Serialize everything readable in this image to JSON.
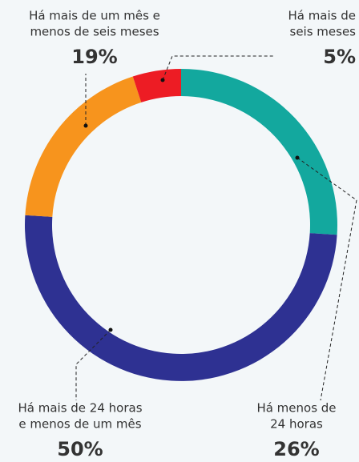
{
  "chart_data": {
    "type": "donut",
    "categories": [
      [
        "Há menos de",
        "24 horas"
      ],
      [
        "Há mais de 24 horas",
        "e menos de um mês"
      ],
      [
        "Há mais de um mês e",
        "menos de seis meses"
      ],
      [
        "Há mais de",
        "seis meses"
      ]
    ],
    "values": [
      26,
      50,
      19,
      5
    ],
    "value_labels": [
      "26%",
      "50%",
      "19%",
      "5%"
    ],
    "colors": [
      "#13a89e",
      "#2e3192",
      "#f7941d",
      "#ed1c24"
    ]
  }
}
